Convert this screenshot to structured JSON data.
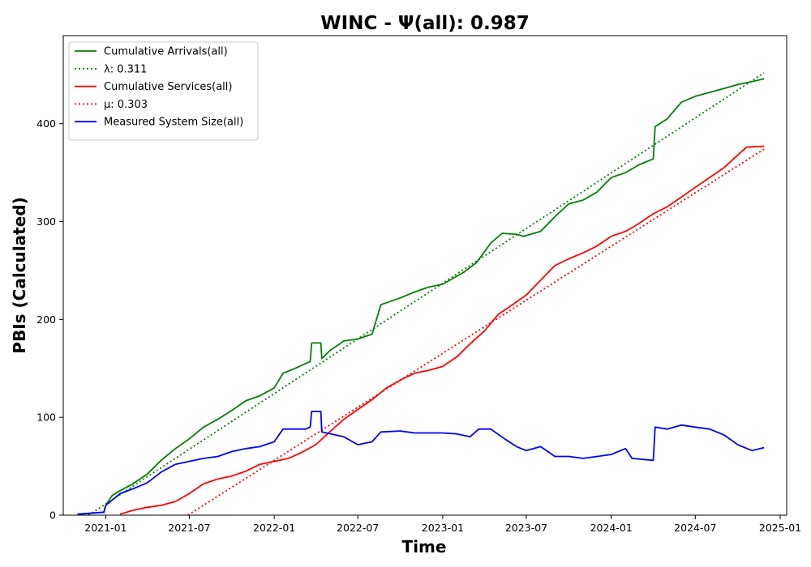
{
  "chart_data": {
    "type": "line",
    "title": "WINC -  Ψ(all): 0.987",
    "xlabel": "Time",
    "ylabel": "PBIs (Calculated)",
    "xlim": [
      "2020-10-01",
      "2025-01-15"
    ],
    "ylim": [
      0,
      490
    ],
    "x_ticks": [
      "2021-01",
      "2021-07",
      "2022-01",
      "2022-07",
      "2023-01",
      "2023-07",
      "2024-01",
      "2024-07",
      "2025-01"
    ],
    "y_ticks": [
      0,
      100,
      200,
      300,
      400
    ],
    "grid": false,
    "legend_position": "top-left",
    "series": [
      {
        "name": "Cumulative Arrivals(all)",
        "color": "#008000",
        "style": "solid",
        "points": [
          [
            "2020-11-01",
            1
          ],
          [
            "2020-12-28",
            3
          ],
          [
            "2021-01-01",
            10
          ],
          [
            "2021-01-15",
            20
          ],
          [
            "2021-02-01",
            25
          ],
          [
            "2021-03-01",
            32
          ],
          [
            "2021-04-01",
            42
          ],
          [
            "2021-05-01",
            56
          ],
          [
            "2021-06-01",
            68
          ],
          [
            "2021-07-01",
            78
          ],
          [
            "2021-08-01",
            90
          ],
          [
            "2021-09-01",
            98
          ],
          [
            "2021-10-01",
            107
          ],
          [
            "2021-11-01",
            117
          ],
          [
            "2021-12-01",
            122
          ],
          [
            "2022-01-01",
            130
          ],
          [
            "2022-01-20",
            145
          ],
          [
            "2022-02-15",
            150
          ],
          [
            "2022-03-20",
            157
          ],
          [
            "2022-03-23",
            176
          ],
          [
            "2022-04-12",
            176
          ],
          [
            "2022-04-14",
            160
          ],
          [
            "2022-05-01",
            168
          ],
          [
            "2022-06-01",
            178
          ],
          [
            "2022-07-01",
            180
          ],
          [
            "2022-08-01",
            185
          ],
          [
            "2022-08-20",
            215
          ],
          [
            "2022-10-01",
            222
          ],
          [
            "2022-11-01",
            228
          ],
          [
            "2022-12-01",
            233
          ],
          [
            "2023-01-01",
            236
          ],
          [
            "2023-02-15",
            248
          ],
          [
            "2023-03-15",
            258
          ],
          [
            "2023-04-15",
            278
          ],
          [
            "2023-05-10",
            288
          ],
          [
            "2023-06-10",
            287
          ],
          [
            "2023-06-25",
            285
          ],
          [
            "2023-08-01",
            290
          ],
          [
            "2023-09-01",
            305
          ],
          [
            "2023-10-01",
            318
          ],
          [
            "2023-11-01",
            322
          ],
          [
            "2023-12-01",
            330
          ],
          [
            "2024-01-01",
            345
          ],
          [
            "2024-02-01",
            350
          ],
          [
            "2024-03-01",
            358
          ],
          [
            "2024-04-01",
            364
          ],
          [
            "2024-04-05",
            397
          ],
          [
            "2024-05-01",
            405
          ],
          [
            "2024-06-01",
            422
          ],
          [
            "2024-07-01",
            428
          ],
          [
            "2024-08-01",
            432
          ],
          [
            "2024-09-01",
            436
          ],
          [
            "2024-10-01",
            440
          ],
          [
            "2024-11-01",
            443
          ],
          [
            "2024-11-27",
            446
          ]
        ]
      },
      {
        "name": "λ: 0.311",
        "color": "#008000",
        "style": "dotted",
        "points": [
          [
            "2020-11-25",
            0
          ],
          [
            "2024-11-27",
            452
          ]
        ]
      },
      {
        "name": "Cumulative Services(all)",
        "color": "#ff0000",
        "style": "solid",
        "points": [
          [
            "2021-02-01",
            1
          ],
          [
            "2021-03-01",
            5
          ],
          [
            "2021-04-01",
            8
          ],
          [
            "2021-05-01",
            10
          ],
          [
            "2021-06-01",
            14
          ],
          [
            "2021-07-01",
            22
          ],
          [
            "2021-08-01",
            32
          ],
          [
            "2021-09-01",
            37
          ],
          [
            "2021-10-01",
            40
          ],
          [
            "2021-11-01",
            45
          ],
          [
            "2021-12-01",
            52
          ],
          [
            "2022-01-01",
            55
          ],
          [
            "2022-02-01",
            58
          ],
          [
            "2022-03-01",
            64
          ],
          [
            "2022-04-01",
            72
          ],
          [
            "2022-05-01",
            85
          ],
          [
            "2022-06-01",
            98
          ],
          [
            "2022-07-01",
            108
          ],
          [
            "2022-08-01",
            118
          ],
          [
            "2022-09-01",
            130
          ],
          [
            "2022-10-01",
            138
          ],
          [
            "2022-11-01",
            145
          ],
          [
            "2022-12-01",
            148
          ],
          [
            "2023-01-01",
            152
          ],
          [
            "2023-02-01",
            162
          ],
          [
            "2023-03-01",
            175
          ],
          [
            "2023-04-01",
            188
          ],
          [
            "2023-05-01",
            205
          ],
          [
            "2023-06-01",
            215
          ],
          [
            "2023-07-01",
            225
          ],
          [
            "2023-08-01",
            240
          ],
          [
            "2023-09-01",
            255
          ],
          [
            "2023-10-01",
            262
          ],
          [
            "2023-11-01",
            268
          ],
          [
            "2023-12-01",
            275
          ],
          [
            "2024-01-01",
            285
          ],
          [
            "2024-02-01",
            290
          ],
          [
            "2024-03-01",
            298
          ],
          [
            "2024-04-01",
            308
          ],
          [
            "2024-05-01",
            315
          ],
          [
            "2024-06-01",
            325
          ],
          [
            "2024-07-01",
            335
          ],
          [
            "2024-08-01",
            345
          ],
          [
            "2024-09-01",
            355
          ],
          [
            "2024-10-01",
            368
          ],
          [
            "2024-10-20",
            376
          ],
          [
            "2024-11-27",
            377
          ]
        ]
      },
      {
        "name": "μ: 0.303",
        "color": "#ff0000",
        "style": "dotted",
        "points": [
          [
            "2021-06-28",
            0
          ],
          [
            "2024-11-27",
            374
          ]
        ]
      },
      {
        "name": "Measured System Size(all)",
        "color": "#0000ff",
        "style": "solid",
        "points": [
          [
            "2020-11-01",
            1
          ],
          [
            "2020-12-28",
            3
          ],
          [
            "2021-01-01",
            10
          ],
          [
            "2021-02-01",
            22
          ],
          [
            "2021-03-01",
            27
          ],
          [
            "2021-04-01",
            33
          ],
          [
            "2021-05-01",
            44
          ],
          [
            "2021-06-01",
            52
          ],
          [
            "2021-07-01",
            55
          ],
          [
            "2021-08-01",
            58
          ],
          [
            "2021-09-01",
            60
          ],
          [
            "2021-10-01",
            65
          ],
          [
            "2021-11-01",
            68
          ],
          [
            "2021-12-01",
            70
          ],
          [
            "2022-01-01",
            75
          ],
          [
            "2022-01-20",
            88
          ],
          [
            "2022-03-10",
            88
          ],
          [
            "2022-03-20",
            90
          ],
          [
            "2022-03-23",
            106
          ],
          [
            "2022-04-12",
            106
          ],
          [
            "2022-04-14",
            85
          ],
          [
            "2022-06-01",
            80
          ],
          [
            "2022-07-01",
            72
          ],
          [
            "2022-08-01",
            75
          ],
          [
            "2022-08-20",
            85
          ],
          [
            "2022-10-01",
            86
          ],
          [
            "2022-11-01",
            84
          ],
          [
            "2023-01-01",
            84
          ],
          [
            "2023-02-01",
            83
          ],
          [
            "2023-03-01",
            80
          ],
          [
            "2023-03-20",
            88
          ],
          [
            "2023-04-15",
            88
          ],
          [
            "2023-05-15",
            78
          ],
          [
            "2023-06-10",
            70
          ],
          [
            "2023-07-01",
            66
          ],
          [
            "2023-08-01",
            70
          ],
          [
            "2023-09-01",
            60
          ],
          [
            "2023-10-01",
            60
          ],
          [
            "2023-11-01",
            58
          ],
          [
            "2024-01-01",
            62
          ],
          [
            "2024-02-01",
            68
          ],
          [
            "2024-02-15",
            58
          ],
          [
            "2024-04-01",
            56
          ],
          [
            "2024-04-05",
            90
          ],
          [
            "2024-05-01",
            88
          ],
          [
            "2024-06-01",
            92
          ],
          [
            "2024-07-01",
            90
          ],
          [
            "2024-08-01",
            88
          ],
          [
            "2024-09-01",
            82
          ],
          [
            "2024-10-01",
            72
          ],
          [
            "2024-11-01",
            66
          ],
          [
            "2024-11-27",
            69
          ]
        ]
      }
    ]
  }
}
